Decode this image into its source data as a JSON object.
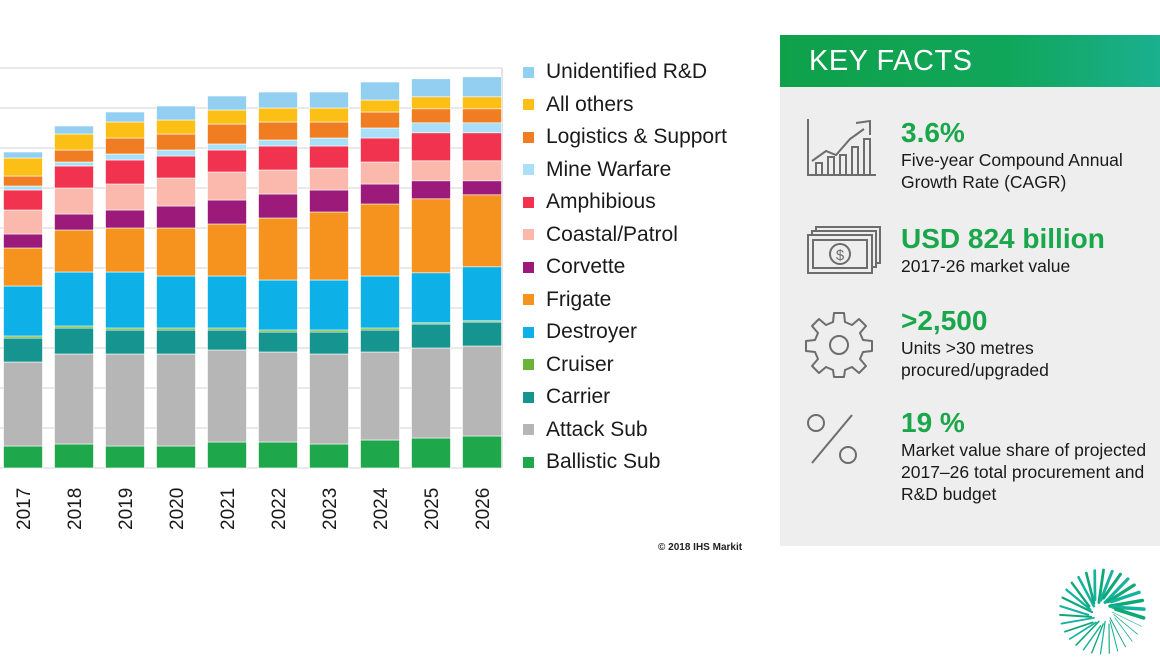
{
  "chart_data": {
    "type": "stacked-bar",
    "categories": [
      "2017",
      "2018",
      "2019",
      "2020",
      "2021",
      "2022",
      "2023",
      "2024",
      "2025",
      "2026"
    ],
    "ylim": [
      0,
      100
    ],
    "grid": true,
    "legend_position": "right",
    "series": [
      {
        "name": "Ballistic Sub",
        "color": "#1fa84b",
        "values": [
          5.5,
          6.0,
          5.5,
          5.5,
          6.5,
          6.5,
          6.0,
          7.0,
          7.5,
          8.0
        ]
      },
      {
        "name": "Attack Sub",
        "color": "#b6b6b6",
        "values": [
          21.0,
          22.5,
          23.0,
          23.0,
          23.0,
          22.5,
          22.5,
          22.0,
          22.5,
          22.5
        ]
      },
      {
        "name": "Carrier",
        "color": "#16948f",
        "values": [
          6.0,
          6.5,
          6.0,
          6.0,
          5.0,
          5.0,
          5.5,
          5.5,
          6.0,
          6.0
        ]
      },
      {
        "name": "Cruiser",
        "color": "#6ab43a",
        "values": [
          0.5,
          0.5,
          0.5,
          0.5,
          0.5,
          0.5,
          0.5,
          0.5,
          0.3,
          0.3
        ]
      },
      {
        "name": "Destroyer",
        "color": "#0db1e7",
        "values": [
          12.5,
          13.5,
          14.0,
          13.0,
          13.0,
          12.5,
          12.5,
          13.0,
          12.5,
          13.5
        ]
      },
      {
        "name": "Frigate",
        "color": "#f6921e",
        "values": [
          9.5,
          10.5,
          11.0,
          12.0,
          13.0,
          15.5,
          17.0,
          18.0,
          18.5,
          18.0
        ]
      },
      {
        "name": "Corvette",
        "color": "#9b1a7a",
        "values": [
          3.5,
          4.0,
          4.5,
          5.5,
          6.0,
          6.0,
          5.5,
          5.0,
          4.5,
          3.5
        ]
      },
      {
        "name": "Coastal/Patrol",
        "color": "#fbb9ad",
        "values": [
          6.0,
          6.5,
          6.5,
          7.0,
          7.0,
          6.0,
          5.5,
          5.5,
          5.0,
          5.0
        ]
      },
      {
        "name": "Amphibious",
        "color": "#f2334f",
        "values": [
          5.0,
          5.5,
          6.0,
          5.5,
          5.5,
          6.0,
          5.5,
          6.0,
          7.0,
          7.0
        ]
      },
      {
        "name": "Mine Warfare",
        "color": "#a9e0f8",
        "values": [
          1.0,
          1.0,
          1.5,
          1.5,
          1.5,
          1.5,
          2.0,
          2.5,
          2.5,
          2.5
        ]
      },
      {
        "name": "Logistics & Support",
        "color": "#f07d22",
        "values": [
          2.5,
          3.0,
          4.0,
          4.0,
          5.0,
          4.5,
          4.0,
          4.0,
          3.5,
          3.5
        ]
      },
      {
        "name": "All others",
        "color": "#fbbf16",
        "values": [
          4.5,
          4.0,
          4.0,
          3.5,
          3.5,
          3.5,
          3.5,
          3.0,
          3.0,
          3.0
        ]
      },
      {
        "name": "Unidentified R&D",
        "color": "#93cff0",
        "values": [
          1.5,
          2.0,
          2.5,
          3.5,
          3.5,
          4.0,
          4.0,
          4.5,
          4.5,
          5.0
        ]
      }
    ]
  },
  "copyright": "© 2018 IHS Markit",
  "key_facts": {
    "title": "KEY FACTS",
    "accent_color": "#1aa64a",
    "items": [
      {
        "icon": "growth-chart-icon",
        "value": "3.6%",
        "lines": [
          "Five-year Compound Annual",
          "Growth Rate (CAGR)"
        ]
      },
      {
        "icon": "money-stack-icon",
        "value": "USD 824 billion",
        "lines": [
          "2017-26 market value"
        ]
      },
      {
        "icon": "gear-icon",
        "value": ">2,500",
        "lines": [
          "Units >30 metres",
          "procured/upgraded"
        ]
      },
      {
        "icon": "percent-icon",
        "value": "19 %",
        "lines": [
          "Market value share of projected",
          "2017–26 total procurement and",
          "R&D budget"
        ]
      }
    ]
  }
}
